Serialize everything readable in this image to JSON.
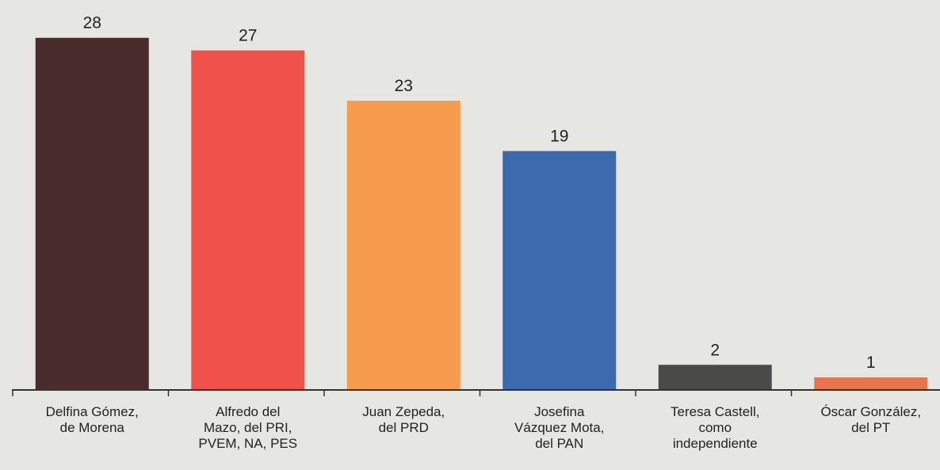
{
  "chart_data": {
    "type": "bar",
    "categories": [
      "Delfina Gómez,\nde Morena",
      "Alfredo del\nMazo, del PRI,\nPVEM, NA, PES",
      "Juan Zepeda,\ndel PRD",
      "Josefina\nVázquez Mota,\ndel PAN",
      "Teresa Castell,\ncomo\nindependiente",
      "Óscar González,\ndel PT"
    ],
    "values": [
      28,
      27,
      23,
      19,
      2,
      1
    ],
    "colors": [
      "#4b2c2c",
      "#f0524b",
      "#f79b4e",
      "#3b6aae",
      "#4b4b49",
      "#e9734c"
    ],
    "ylim": [
      0,
      30
    ]
  }
}
